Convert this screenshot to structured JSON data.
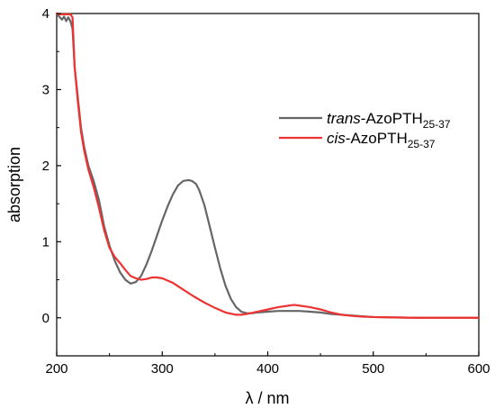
{
  "chart_data": {
    "type": "line",
    "title": "",
    "xlabel": "λ / nm",
    "ylabel": "absorption",
    "xlim": [
      200,
      600
    ],
    "ylim": [
      -0.5,
      4.0
    ],
    "x_ticks": [
      200,
      300,
      400,
      500,
      600
    ],
    "y_ticks": [
      0,
      1,
      2,
      3,
      4
    ],
    "grid": false,
    "legend_placement": "right",
    "series": [
      {
        "name_prefix": "trans",
        "name_main": "-AzoPTH",
        "name_sub": "25-37",
        "color": "#666666",
        "x": [
          200,
          203,
          205,
          207,
          209,
          211,
          213,
          215,
          217,
          220,
          223,
          226,
          230,
          235,
          240,
          245,
          250,
          255,
          260,
          265,
          270,
          275,
          280,
          285,
          290,
          295,
          300,
          305,
          310,
          315,
          320,
          325,
          328,
          332,
          335,
          340,
          345,
          350,
          355,
          360,
          365,
          370,
          375,
          380,
          385,
          390,
          400,
          410,
          420,
          430,
          440,
          450,
          460,
          470,
          480,
          490,
          500,
          520,
          540,
          560,
          580,
          600
        ],
        "y": [
          4.0,
          3.95,
          3.92,
          3.96,
          3.9,
          3.95,
          3.9,
          3.8,
          3.3,
          2.9,
          2.5,
          2.25,
          2.0,
          1.8,
          1.55,
          1.2,
          0.95,
          0.75,
          0.6,
          0.5,
          0.45,
          0.47,
          0.55,
          0.7,
          0.88,
          1.08,
          1.28,
          1.46,
          1.62,
          1.74,
          1.8,
          1.81,
          1.8,
          1.76,
          1.68,
          1.48,
          1.2,
          0.92,
          0.65,
          0.42,
          0.25,
          0.14,
          0.08,
          0.06,
          0.06,
          0.07,
          0.08,
          0.09,
          0.09,
          0.09,
          0.08,
          0.07,
          0.05,
          0.04,
          0.03,
          0.02,
          0.01,
          0.005,
          0.0,
          0.0,
          0.0,
          0.0
        ]
      },
      {
        "name_prefix": "cis",
        "name_main": "-AzoPTH",
        "name_sub": "25-37",
        "color": "#ee3333",
        "x": [
          200,
          203,
          205,
          207,
          209,
          211,
          213,
          215,
          217,
          220,
          223,
          226,
          230,
          235,
          240,
          245,
          250,
          255,
          260,
          265,
          270,
          275,
          280,
          285,
          290,
          295,
          300,
          305,
          310,
          320,
          330,
          340,
          350,
          360,
          370,
          375,
          380,
          390,
          400,
          410,
          420,
          425,
          430,
          440,
          450,
          460,
          470,
          480,
          490,
          500,
          520,
          540,
          560,
          580,
          600
        ],
        "y": [
          4.0,
          3.99,
          3.99,
          3.99,
          3.99,
          3.99,
          3.99,
          3.95,
          3.3,
          2.85,
          2.45,
          2.2,
          1.95,
          1.72,
          1.45,
          1.15,
          0.92,
          0.8,
          0.72,
          0.63,
          0.55,
          0.52,
          0.5,
          0.51,
          0.53,
          0.53,
          0.52,
          0.49,
          0.46,
          0.37,
          0.28,
          0.2,
          0.13,
          0.07,
          0.04,
          0.04,
          0.05,
          0.08,
          0.11,
          0.14,
          0.16,
          0.17,
          0.16,
          0.14,
          0.11,
          0.07,
          0.04,
          0.025,
          0.015,
          0.01,
          0.005,
          0.0,
          0.0,
          0.0,
          0.0
        ]
      }
    ]
  }
}
